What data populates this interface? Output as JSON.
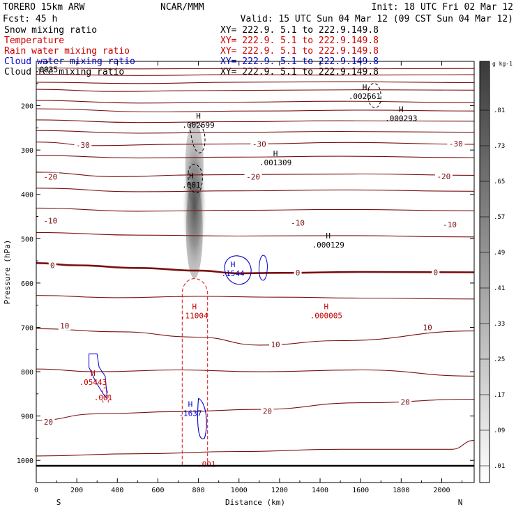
{
  "header": {
    "model": "TORERO  15km ARW",
    "center": "NCAR/MMM",
    "init": "Init: 18 UTC Fri 02 Mar 12",
    "fcst": "Fcst:   45 h",
    "valid": "Valid: 15 UTC Sun 04 Mar 12 (09 CST Sun 04 Mar 12)"
  },
  "legend": [
    {
      "field": "Snow mixing ratio",
      "xy": "XY= 222.9.  5.1 to 222.9.149.8",
      "color": "#000000"
    },
    {
      "field": "Temperature",
      "xy": "XY= 222.9.  5.1 to 222.9.149.8",
      "color": "#cc0000"
    },
    {
      "field": "Rain water mixing ratio",
      "xy": "XY= 222.9.  5.1 to 222.9.149.8",
      "color": "#cc0000"
    },
    {
      "field": "Cloud water mixing ratio",
      "xy": "XY= 222.9.  5.1 to 222.9.149.8",
      "color": "#0000cc"
    },
    {
      "field": "Cloud ice mixing ratio",
      "xy": "XY= 222.9.  5.1 to 222.9.149.8",
      "color": "#000000"
    }
  ],
  "chart_data": {
    "type": "cross-section contour",
    "xlabel": "Distance (km)",
    "ylabel": "Pressure (hPa)",
    "xlim": [
      0,
      2160
    ],
    "ylim": [
      1050,
      100
    ],
    "x_ticks": [
      0,
      200,
      400,
      600,
      800,
      1000,
      1200,
      1400,
      1600,
      1800,
      2000
    ],
    "y_ticks": [
      200,
      300,
      400,
      500,
      600,
      700,
      800,
      900,
      1000
    ],
    "endpoints": {
      "left": "S",
      "right": "N"
    },
    "colorbar": {
      "unit": "g kg-1",
      "ticks": [
        ".01",
        ".09",
        ".17",
        ".25",
        ".33",
        ".41",
        ".49",
        ".57",
        ".65",
        ".73",
        ".81"
      ]
    },
    "temperature_levels": [
      -55,
      -50,
      -45,
      -40,
      -35,
      -30,
      -25,
      -20,
      -15,
      -10,
      -5,
      0,
      5,
      10,
      15,
      20,
      25
    ],
    "temperature_contours": [
      {
        "t": -55,
        "pts": [
          [
            0,
            115
          ],
          [
            500,
            117
          ],
          [
            1000,
            116
          ],
          [
            1500,
            117
          ],
          [
            2160,
            116
          ]
        ]
      },
      {
        "t": -50,
        "pts": [
          [
            0,
            129
          ],
          [
            500,
            132
          ],
          [
            1000,
            130
          ],
          [
            1500,
            131
          ],
          [
            2160,
            130
          ]
        ]
      },
      {
        "t": -45,
        "pts": [
          [
            0,
            147
          ],
          [
            500,
            150
          ],
          [
            1000,
            147
          ],
          [
            1500,
            146
          ],
          [
            2160,
            148
          ]
        ]
      },
      {
        "t": -45,
        "pts": [
          [
            0,
            163
          ],
          [
            400,
            168
          ],
          [
            800,
            166
          ],
          [
            1200,
            165
          ],
          [
            1600,
            164
          ],
          [
            2160,
            165
          ]
        ]
      },
      {
        "t": -40,
        "pts": [
          [
            0,
            188
          ],
          [
            500,
            194
          ],
          [
            1000,
            192
          ],
          [
            1500,
            190
          ],
          [
            2160,
            193
          ]
        ]
      },
      {
        "t": -40,
        "pts": [
          [
            0,
            207
          ],
          [
            600,
            214
          ],
          [
            1100,
            212
          ],
          [
            1600,
            210
          ],
          [
            2160,
            212
          ]
        ]
      },
      {
        "t": -35,
        "pts": [
          [
            0,
            232
          ],
          [
            500,
            238
          ],
          [
            1000,
            236
          ],
          [
            1500,
            234
          ],
          [
            2160,
            235
          ]
        ]
      },
      {
        "t": -35,
        "pts": [
          [
            0,
            256
          ],
          [
            500,
            262
          ],
          [
            1000,
            260
          ],
          [
            1500,
            258
          ],
          [
            2160,
            260
          ]
        ]
      },
      {
        "t": -30,
        "pts": [
          [
            0,
            282
          ],
          [
            300,
            290
          ],
          [
            700,
            287
          ],
          [
            1100,
            286
          ],
          [
            1500,
            283
          ],
          [
            2160,
            287
          ]
        ]
      },
      {
        "t": -25,
        "pts": [
          [
            0,
            312
          ],
          [
            500,
            318
          ],
          [
            1000,
            316
          ],
          [
            1500,
            314
          ],
          [
            2160,
            317
          ]
        ]
      },
      {
        "t": -20,
        "pts": [
          [
            0,
            350
          ],
          [
            400,
            360
          ],
          [
            800,
            356
          ],
          [
            1200,
            355
          ],
          [
            1600,
            354
          ],
          [
            2160,
            357
          ]
        ]
      },
      {
        "t": -15,
        "pts": [
          [
            0,
            386
          ],
          [
            500,
            394
          ],
          [
            1000,
            392
          ],
          [
            1500,
            390
          ],
          [
            2160,
            393
          ]
        ]
      },
      {
        "t": -10,
        "pts": [
          [
            0,
            431
          ],
          [
            500,
            438
          ],
          [
            1000,
            436
          ],
          [
            1500,
            434
          ],
          [
            2160,
            437
          ]
        ]
      },
      {
        "t": -5,
        "pts": [
          [
            0,
            486
          ],
          [
            500,
            492
          ],
          [
            1000,
            494
          ],
          [
            1500,
            493
          ],
          [
            2160,
            496
          ]
        ]
      },
      {
        "t": 0,
        "pts": [
          [
            0,
            555
          ],
          [
            200,
            560
          ],
          [
            500,
            566
          ],
          [
            800,
            572
          ],
          [
            1000,
            578
          ],
          [
            1200,
            577
          ],
          [
            1600,
            575
          ],
          [
            2160,
            576
          ]
        ]
      },
      {
        "t": 5,
        "pts": [
          [
            0,
            628
          ],
          [
            400,
            633
          ],
          [
            800,
            630
          ],
          [
            1200,
            632
          ],
          [
            1600,
            634
          ],
          [
            2160,
            636
          ]
        ]
      },
      {
        "t": 10,
        "pts": [
          [
            0,
            703
          ],
          [
            400,
            710
          ],
          [
            800,
            722
          ],
          [
            1100,
            740
          ],
          [
            1500,
            730
          ],
          [
            2160,
            708
          ]
        ]
      },
      {
        "t": 15,
        "pts": [
          [
            0,
            794
          ],
          [
            300,
            800
          ],
          [
            700,
            796
          ],
          [
            1100,
            800
          ],
          [
            1600,
            796
          ],
          [
            2160,
            810
          ]
        ]
      },
      {
        "t": 20,
        "pts": [
          [
            0,
            910
          ],
          [
            300,
            895
          ],
          [
            700,
            890
          ],
          [
            1100,
            885
          ],
          [
            1600,
            870
          ],
          [
            2160,
            862
          ]
        ]
      },
      {
        "t": 25,
        "pts": [
          [
            0,
            990
          ],
          [
            500,
            985
          ],
          [
            1000,
            980
          ],
          [
            1500,
            975
          ],
          [
            2050,
            975
          ],
          [
            2160,
            955
          ]
        ]
      }
    ],
    "temperature_labels": [
      {
        "text": "-30",
        "x": 230,
        "p": 290
      },
      {
        "text": "-30",
        "x": 1100,
        "p": 288
      },
      {
        "text": "-30",
        "x": 2070,
        "p": 287
      },
      {
        "text": "-20",
        "x": 70,
        "p": 362
      },
      {
        "text": "-20",
        "x": 1070,
        "p": 362
      },
      {
        "text": "-20",
        "x": 2010,
        "p": 361
      },
      {
        "text": "-10",
        "x": 70,
        "p": 461
      },
      {
        "text": "-10",
        "x": 1290,
        "p": 466
      },
      {
        "text": "-10",
        "x": 2040,
        "p": 470
      },
      {
        "text": "0",
        "x": 80,
        "p": 562
      },
      {
        "text": "0",
        "x": 1290,
        "p": 578
      },
      {
        "text": "0",
        "x": 1970,
        "p": 577
      },
      {
        "text": "10",
        "x": 140,
        "p": 698
      },
      {
        "text": "10",
        "x": 1180,
        "p": 740
      },
      {
        "text": "10",
        "x": 1930,
        "p": 702
      },
      {
        "text": "20",
        "x": 60,
        "p": 915
      },
      {
        "text": "20",
        "x": 1140,
        "p": 890
      },
      {
        "text": "20",
        "x": 1820,
        "p": 870
      }
    ],
    "maxima_labels": [
      {
        "mark": "H",
        "value": ".002661",
        "x": 1620,
        "p": 180,
        "field": "snow"
      },
      {
        "mark": "H",
        "value": ".000293",
        "x": 1800,
        "p": 230,
        "field": "snow"
      },
      {
        "mark": "H",
        "value": ".002699",
        "x": 800,
        "p": 245,
        "field": "snow"
      },
      {
        "mark": "H",
        "value": ".001309",
        "x": 1180,
        "p": 330,
        "field": "snow"
      },
      {
        "mark": "H",
        "value": ".001",
        "x": 765,
        "p": 380,
        "field": "snow"
      },
      {
        "mark": "H",
        "value": ".000129",
        "x": 1440,
        "p": 515,
        "field": "snow"
      },
      {
        "mark": "H",
        "value": ".0035",
        "x": 50,
        "p": 120,
        "field": "ice"
      },
      {
        "mark": "H",
        "value": ".1544",
        "x": 970,
        "p": 580,
        "field": "cloud"
      },
      {
        "mark": "H",
        "value": ".11004",
        "x": 780,
        "p": 675,
        "field": "rain"
      },
      {
        "mark": "H",
        "value": ".000005",
        "x": 1430,
        "p": 675,
        "field": "rain"
      },
      {
        "mark": "H",
        "value": ".05443",
        "x": 280,
        "p": 825,
        "field": "rain"
      },
      {
        "mark": "H",
        "value": ".1637",
        "x": 760,
        "p": 895,
        "field": "cloud"
      },
      {
        "mark": "",
        "value": ".001",
        "x": 330,
        "p": 860,
        "field": "rain"
      },
      {
        "mark": "",
        "value": ".001",
        "x": 840,
        "p": 1010,
        "field": "rain"
      }
    ],
    "snow_shading": {
      "center_x": 780,
      "p_top": 250,
      "p_bottom": 590,
      "peak": ".81"
    }
  }
}
